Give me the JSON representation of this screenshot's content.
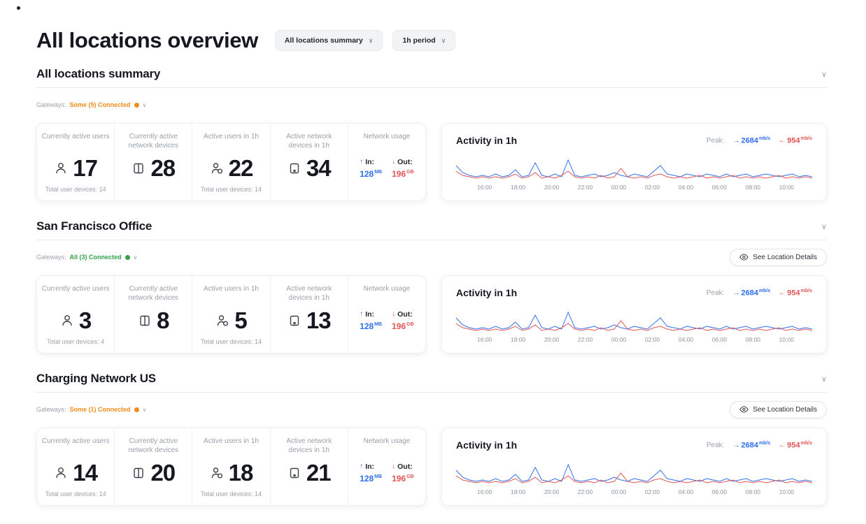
{
  "colors": {
    "accent": "#2f6fed",
    "danger": "#e25555",
    "warning": "#ef8c1a",
    "success": "#33a04a"
  },
  "page": {
    "title": "All locations overview"
  },
  "filters": {
    "location_filter": "All locations summary",
    "period_filter": "1h period"
  },
  "labels": {
    "gateways": "Gateways:",
    "see_location_details": "See Location Details"
  },
  "activity": {
    "title": "Activity in 1h",
    "peak_label": "Peak:",
    "in_value": "2684",
    "in_unit": "mb/s",
    "out_value": "954",
    "out_unit": "mb/s"
  },
  "sections": [
    {
      "title": "All locations summary",
      "gateway_status": "Some (5) Connected",
      "status_type": "warning",
      "show_details": false,
      "stats": [
        {
          "label": "Currently active users",
          "value": "17",
          "footer": "Total user devices: 14"
        },
        {
          "label": "Currently active network devices",
          "value": "28",
          "footer": ""
        },
        {
          "label": "Active users in 1h",
          "value": "22",
          "footer": "Total user devices: 14"
        },
        {
          "label": "Active network devices in 1h",
          "value": "34",
          "footer": ""
        }
      ],
      "network": {
        "label": "Network usage",
        "in_label": "In:",
        "in_value": "128",
        "in_unit": "MB",
        "out_label": "Out:",
        "out_value": "196",
        "out_unit": "GB"
      }
    },
    {
      "title": "San Francisco Office",
      "gateway_status": "All (3) Connected",
      "status_type": "success",
      "show_details": true,
      "stats": [
        {
          "label": "Currently active users",
          "value": "3",
          "footer": "Total user devices: 4"
        },
        {
          "label": "Currently active network devices",
          "value": "8",
          "footer": ""
        },
        {
          "label": "Active users in 1h",
          "value": "5",
          "footer": "Total user devices: 14"
        },
        {
          "label": "Active network devices in 1h",
          "value": "13",
          "footer": ""
        }
      ],
      "network": {
        "label": "Network usage",
        "in_label": "In:",
        "in_value": "128",
        "in_unit": "MB",
        "out_label": "Out:",
        "out_value": "196",
        "out_unit": "GB"
      }
    },
    {
      "title": "Charging Network US",
      "gateway_status": "Some (1) Connected",
      "status_type": "warning",
      "show_details": true,
      "stats": [
        {
          "label": "Currently active users",
          "value": "14",
          "footer": "Total user devices: 14"
        },
        {
          "label": "Currently active network devices",
          "value": "20",
          "footer": ""
        },
        {
          "label": "Active users in 1h",
          "value": "18",
          "footer": "Total user devices: 14"
        },
        {
          "label": "Active network devices in 1h",
          "value": "21",
          "footer": ""
        }
      ],
      "network": {
        "label": "Network usage",
        "in_label": "In:",
        "in_value": "128",
        "in_unit": "MB",
        "out_label": "Out:",
        "out_value": "196",
        "out_unit": "GB"
      }
    }
  ],
  "chart_data": {
    "type": "line",
    "title": "Activity in 1h",
    "x_labels": [
      "16:00",
      "18:00",
      "20:00",
      "22:00",
      "00:00",
      "02:00",
      "04:00",
      "06:00",
      "08:00",
      "10:00"
    ],
    "ylim": [
      0,
      20
    ],
    "legend": "none",
    "series": [
      {
        "name": "in",
        "color": "#2f6fed",
        "peak": "2684 mb/s",
        "values": [
          12,
          7,
          5,
          4,
          5,
          4,
          6,
          4,
          5,
          9,
          4,
          5,
          14,
          5,
          4,
          6,
          4,
          16,
          5,
          4,
          5,
          6,
          4,
          5,
          7,
          5,
          4,
          6,
          5,
          4,
          8,
          12,
          6,
          5,
          4,
          6,
          5,
          4,
          6,
          5,
          4,
          6,
          4,
          5,
          6,
          4,
          5,
          6,
          5,
          4,
          5,
          6,
          4,
          5,
          4
        ]
      },
      {
        "name": "out",
        "color": "#e25555",
        "peak": "954 mb/s",
        "values": [
          8,
          5,
          4,
          3,
          4,
          3,
          4,
          3,
          4,
          6,
          3,
          4,
          7,
          3,
          4,
          3,
          5,
          8,
          4,
          3,
          4,
          3,
          5,
          3,
          4,
          10,
          4,
          3,
          4,
          3,
          5,
          6,
          4,
          3,
          4,
          3,
          4,
          5,
          3,
          4,
          3,
          4,
          5,
          3,
          4,
          3,
          4,
          3,
          4,
          5,
          3,
          4,
          3,
          4,
          3
        ]
      }
    ]
  }
}
